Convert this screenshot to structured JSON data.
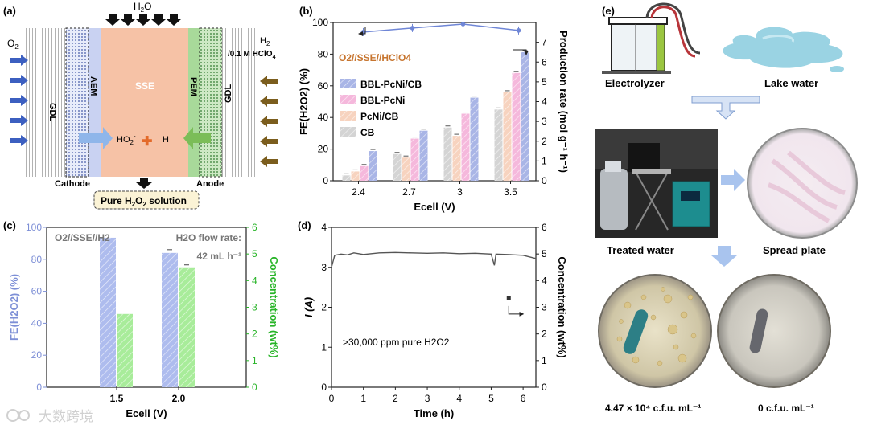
{
  "panel_a": {
    "label": "(a)",
    "water": "H2O",
    "o2": "O2",
    "h2": "H2",
    "acid": "/0.1 M HClO4",
    "gdl_left": "GDL",
    "gdl_right": "GDL",
    "aem": "AEM",
    "sse": "SSE",
    "pem": "PEM",
    "ho2": "HO2",
    "hplus": "H+",
    "cathode": "Cathode",
    "anode": "Anode",
    "product": "Pure H2O2 solution"
  },
  "panel_e": {
    "label": "(e)",
    "electrolyzer": "Electrolyzer",
    "lake": "Lake water",
    "treated": "Treated water",
    "spread": "Spread plate",
    "count_left": "4.47 × 10⁴ c.f.u. mL⁻¹",
    "count_right": "0 c.f.u. mL⁻¹"
  },
  "watermark": "大数跨境",
  "chart_data": [
    {
      "panel": "(b)",
      "type": "bar",
      "annotation": "O2//SSE//HClO4",
      "categories": [
        "2.4",
        "2.7",
        "3",
        "3.5"
      ],
      "xlabel": "Ecell (V)",
      "ylabel_left": "FE(H2O2) (%)",
      "ylabel_right": "Production rate (mol g⁻¹ h⁻¹)",
      "ylim_left": [
        0,
        100
      ],
      "ylim_right": [
        0,
        8
      ],
      "yticks_left": [
        "0",
        "20",
        "40",
        "60",
        "80",
        "100"
      ],
      "yticks_right": [
        "0",
        "1",
        "2",
        "3",
        "4",
        "5",
        "6",
        "7"
      ],
      "series": [
        {
          "name": "CB",
          "color": "#d4d4d4",
          "values": [
            0.27,
            1.35,
            2.69,
            3.6
          ]
        },
        {
          "name": "PcNi/CB",
          "color": "#f7d3bf",
          "values": [
            0.47,
            1.17,
            2.27,
            4.47
          ]
        },
        {
          "name": "BBL-PcNi",
          "color": "#f5b8dc",
          "values": [
            0.74,
            2.13,
            3.39,
            5.45
          ]
        },
        {
          "name": "BBL-PcNi/CB",
          "color": "#a9b5e6",
          "values": [
            1.5,
            2.53,
            4.2,
            6.5
          ]
        }
      ],
      "fe_line": {
        "name": "FE",
        "color": "#6f86d6",
        "values": [
          94,
          96.5,
          99,
          95
        ]
      }
    },
    {
      "panel": "(c)",
      "type": "bar",
      "annotation": "O2//SSE//H2",
      "flow_label": "H2O flow rate:",
      "flow_value": "42 mL h⁻¹",
      "categories": [
        "1.5",
        "2.0"
      ],
      "xlabel": "Ecell (V)",
      "ylabel_left": "FE(H2O2) (%)",
      "ylabel_right": "Concentration (wt%)",
      "ylim_left": [
        0,
        100
      ],
      "ylim_right": [
        0,
        6
      ],
      "yticks_left": [
        "0",
        "20",
        "40",
        "60",
        "80",
        "100"
      ],
      "yticks_right": [
        "0",
        "1",
        "2",
        "3",
        "4",
        "5",
        "6"
      ],
      "series": [
        {
          "name": "FE",
          "color": "#aebcee",
          "values": [
            93.5,
            84
          ]
        },
        {
          "name": "Concentration",
          "color": "#a8ec9a",
          "values": [
            2.75,
            4.5
          ]
        }
      ]
    },
    {
      "panel": "(d)",
      "type": "line",
      "annotation": ">30,000 ppm pure H2O2",
      "xlabel": "Time (h)",
      "ylabel_left": "I (A)",
      "ylabel_right": "Concentration (wt%)",
      "xlim": [
        0,
        6.4
      ],
      "ylim_left": [
        0,
        4
      ],
      "ylim_right": [
        0,
        6
      ],
      "xticks": [
        "0",
        "1",
        "2",
        "3",
        "4",
        "5",
        "6"
      ],
      "yticks_left": [
        "0",
        "1",
        "2",
        "3",
        "4"
      ],
      "yticks_right": [
        "0",
        "1",
        "2",
        "3",
        "4",
        "5",
        "6"
      ],
      "current": [
        [
          0,
          3.0
        ],
        [
          0.1,
          3.3
        ],
        [
          0.3,
          3.33
        ],
        [
          0.5,
          3.31
        ],
        [
          0.7,
          3.36
        ],
        [
          1.0,
          3.32
        ],
        [
          1.5,
          3.36
        ],
        [
          2.0,
          3.37
        ],
        [
          2.5,
          3.36
        ],
        [
          3.0,
          3.35
        ],
        [
          3.5,
          3.36
        ],
        [
          4.0,
          3.34
        ],
        [
          4.5,
          3.35
        ],
        [
          5.0,
          3.33
        ],
        [
          5.1,
          3.05
        ],
        [
          5.15,
          3.33
        ],
        [
          5.5,
          3.32
        ],
        [
          6.0,
          3.3
        ],
        [
          6.4,
          3.22
        ]
      ],
      "concentration_point": [
        5.55,
        3.35
      ]
    }
  ]
}
